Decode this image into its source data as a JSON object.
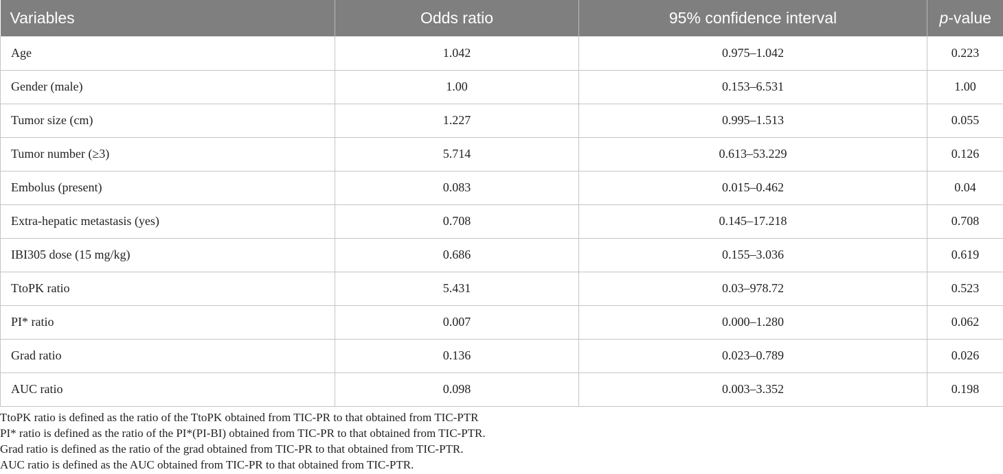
{
  "table": {
    "headers": {
      "variables": "Variables",
      "odds_ratio": "Odds ratio",
      "ci": "95% confidence interval",
      "p_italic": "p",
      "p_rest": "-value"
    },
    "rows": [
      {
        "variable": "Age",
        "odds_ratio": "1.042",
        "ci": "0.975–1.042",
        "p": "0.223"
      },
      {
        "variable": "Gender (male)",
        "odds_ratio": "1.00",
        "ci": "0.153–6.531",
        "p": "1.00"
      },
      {
        "variable": "Tumor size (cm)",
        "odds_ratio": "1.227",
        "ci": "0.995–1.513",
        "p": "0.055"
      },
      {
        "variable": "Tumor number (≥3)",
        "odds_ratio": "5.714",
        "ci": "0.613–53.229",
        "p": "0.126"
      },
      {
        "variable": "Embolus (present)",
        "odds_ratio": "0.083",
        "ci": "0.015–0.462",
        "p": "0.04"
      },
      {
        "variable": "Extra-hepatic metastasis (yes)",
        "odds_ratio": "0.708",
        "ci": "0.145–17.218",
        "p": "0.708"
      },
      {
        "variable": "IBI305 dose (15 mg/kg)",
        "odds_ratio": "0.686",
        "ci": "0.155–3.036",
        "p": "0.619"
      },
      {
        "variable": "TtoPK ratio",
        "odds_ratio": "5.431",
        "ci": "0.03–978.72",
        "p": "0.523"
      },
      {
        "variable": "PI* ratio",
        "odds_ratio": "0.007",
        "ci": "0.000–1.280",
        "p": "0.062"
      },
      {
        "variable": "Grad ratio",
        "odds_ratio": "0.136",
        "ci": "0.023–0.789",
        "p": "0.026"
      },
      {
        "variable": "AUC ratio",
        "odds_ratio": "0.098",
        "ci": "0.003–3.352",
        "p": "0.198"
      }
    ]
  },
  "footnotes": [
    "TtoPK ratio is defined as the ratio of the TtoPK obtained from TIC-PR to that obtained from TIC-PTR",
    "PI* ratio is defined as the ratio of the PI*(PI-BI) obtained from TIC-PR to that obtained from TIC-PTR.",
    "Grad ratio is defined as the ratio of the grad obtained from TIC-PR to that obtained from TIC-PTR.",
    "AUC ratio is defined as the AUC obtained from TIC-PR to that obtained from TIC-PTR."
  ],
  "colors": {
    "header_background": "#7f7f7f",
    "header_text": "#ffffff",
    "grid_lines": "#c4c4c4"
  }
}
